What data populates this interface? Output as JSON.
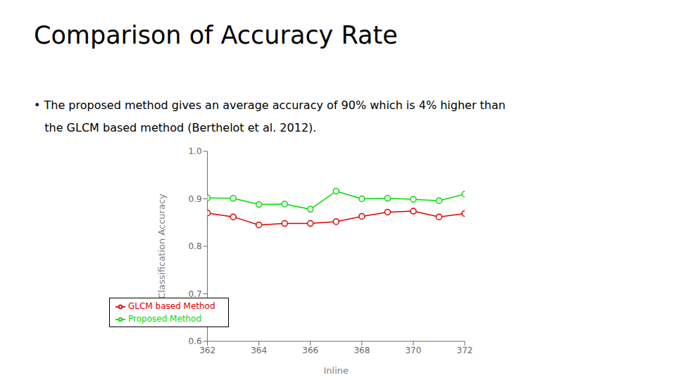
{
  "chart_data": {
    "type": "line",
    "title": "Comparison of Accuracy Rate",
    "annotations": [
      "• The proposed method gives an average accuracy of 90% which is 4% higher than",
      "   the GLCM based method (Berthelot et al. 2012)."
    ],
    "x": [
      362,
      363,
      364,
      365,
      366,
      367,
      368,
      369,
      370,
      371,
      372
    ],
    "series": [
      {
        "name": "Proposed Method",
        "color": "#00DD00",
        "marker": "circle",
        "values": [
          0.902,
          0.901,
          0.888,
          0.889,
          0.878,
          0.916,
          0.9,
          0.901,
          0.899,
          0.896,
          0.91
        ]
      },
      {
        "name": "GLCM based Method",
        "color": "#DD0000",
        "marker": "circle",
        "values": [
          0.87,
          0.862,
          0.845,
          0.848,
          0.848,
          0.852,
          0.863,
          0.872,
          0.874,
          0.862,
          0.869
        ]
      }
    ],
    "xlabel": "Inline",
    "ylabel": "Classification Accuracy",
    "xlim": [
      362,
      372
    ],
    "ylim": [
      0.6,
      1.0
    ],
    "xticks": [
      362,
      364,
      366,
      368,
      370,
      372
    ],
    "yticks": [
      0.6,
      0.7,
      0.8,
      0.9,
      {
        "value": 1,
        "label": "1.0"
      }
    ],
    "legend": "lower left",
    "grid": false
  }
}
